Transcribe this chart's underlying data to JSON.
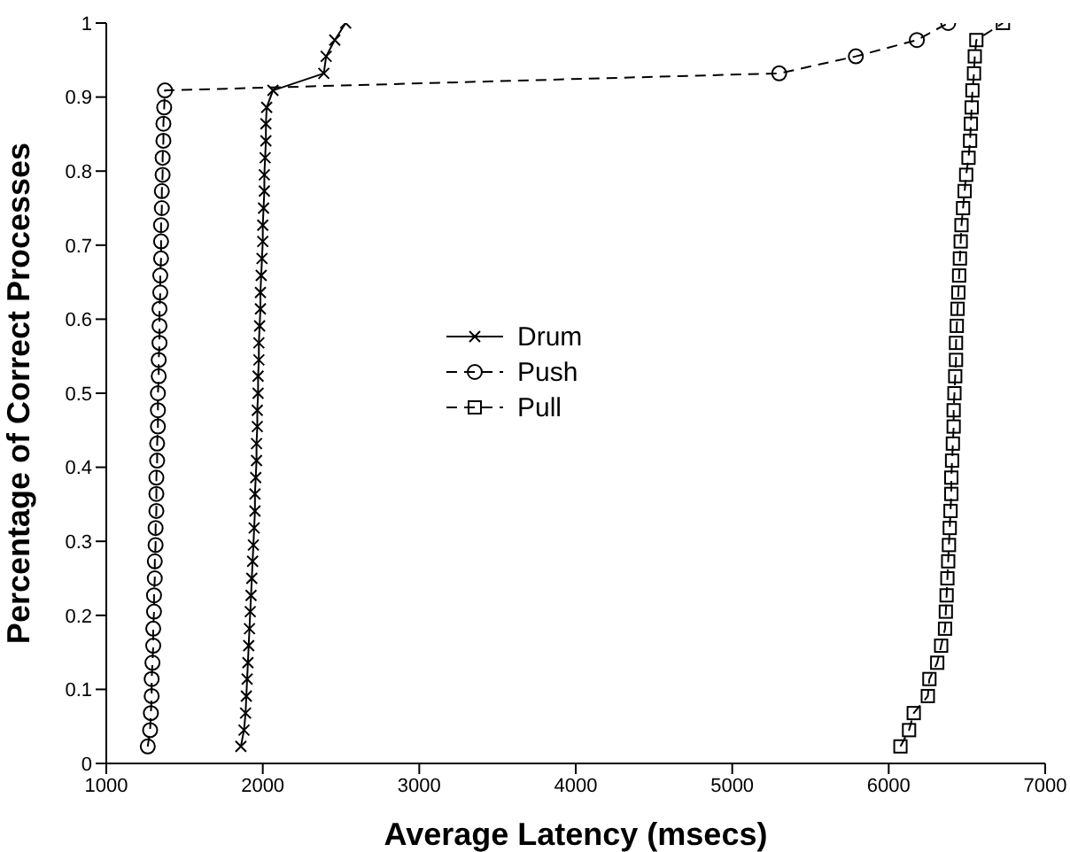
{
  "chart_data": {
    "type": "line",
    "xlabel": "Average Latency (msecs)",
    "ylabel": "Percentage of Correct Processes",
    "xlim": [
      1000,
      7000
    ],
    "xticks": [
      1000,
      2000,
      3000,
      4000,
      5000,
      6000,
      7000
    ],
    "ylim": [
      0,
      1
    ],
    "yticks": [
      0,
      0.1,
      0.2,
      0.3,
      0.4,
      0.5,
      0.6,
      0.7,
      0.8,
      0.9,
      1
    ],
    "grid": false,
    "legend": "center",
    "series": [
      {
        "name": "Drum",
        "color": "#000000",
        "marker": "cross",
        "line_style": "solid",
        "x": [
          1860,
          1880,
          1890,
          1895,
          1900,
          1905,
          1910,
          1915,
          1920,
          1925,
          1930,
          1935,
          1940,
          1945,
          1950,
          1950,
          1955,
          1960,
          1960,
          1965,
          1965,
          1970,
          1970,
          1975,
          1975,
          1980,
          1985,
          1985,
          1990,
          1995,
          2000,
          2000,
          2005,
          2010,
          2010,
          2015,
          2020,
          2020,
          2025,
          2065,
          2390,
          2405,
          2460,
          2530
        ],
        "values": [
          0.023,
          0.045,
          0.068,
          0.091,
          0.114,
          0.136,
          0.159,
          0.182,
          0.205,
          0.227,
          0.25,
          0.273,
          0.295,
          0.318,
          0.341,
          0.364,
          0.386,
          0.409,
          0.432,
          0.455,
          0.477,
          0.5,
          0.523,
          0.545,
          0.568,
          0.591,
          0.614,
          0.636,
          0.659,
          0.682,
          0.705,
          0.727,
          0.75,
          0.773,
          0.795,
          0.818,
          0.841,
          0.864,
          0.886,
          0.909,
          0.932,
          0.955,
          0.977,
          1
        ]
      },
      {
        "name": "Push",
        "color": "#000000",
        "marker": "circle",
        "line_style": "dashed",
        "x": [
          1265,
          1280,
          1285,
          1290,
          1290,
          1295,
          1300,
          1300,
          1305,
          1305,
          1310,
          1310,
          1315,
          1315,
          1320,
          1320,
          1320,
          1325,
          1325,
          1330,
          1330,
          1330,
          1335,
          1335,
          1340,
          1340,
          1340,
          1345,
          1345,
          1350,
          1350,
          1350,
          1355,
          1355,
          1360,
          1360,
          1365,
          1365,
          1370,
          1375,
          5300,
          5790,
          6180,
          6380
        ],
        "values": [
          0.023,
          0.045,
          0.068,
          0.091,
          0.114,
          0.136,
          0.159,
          0.182,
          0.205,
          0.227,
          0.25,
          0.273,
          0.295,
          0.318,
          0.341,
          0.364,
          0.386,
          0.409,
          0.432,
          0.455,
          0.477,
          0.5,
          0.523,
          0.545,
          0.568,
          0.591,
          0.614,
          0.636,
          0.659,
          0.682,
          0.705,
          0.727,
          0.75,
          0.773,
          0.795,
          0.818,
          0.841,
          0.864,
          0.886,
          0.909,
          0.932,
          0.955,
          0.977,
          1
        ]
      },
      {
        "name": "Pull",
        "color": "#000000",
        "marker": "square",
        "line_style": "dashed",
        "x": [
          6075,
          6130,
          6160,
          6250,
          6260,
          6310,
          6335,
          6360,
          6365,
          6370,
          6375,
          6380,
          6385,
          6390,
          6395,
          6400,
          6400,
          6405,
          6410,
          6415,
          6415,
          6420,
          6425,
          6430,
          6430,
          6435,
          6440,
          6445,
          6450,
          6455,
          6460,
          6465,
          6475,
          6485,
          6495,
          6510,
          6520,
          6525,
          6530,
          6535,
          6545,
          6550,
          6560,
          6730
        ],
        "values": [
          0.023,
          0.045,
          0.068,
          0.091,
          0.114,
          0.136,
          0.159,
          0.182,
          0.205,
          0.227,
          0.25,
          0.273,
          0.295,
          0.318,
          0.341,
          0.364,
          0.386,
          0.409,
          0.432,
          0.455,
          0.477,
          0.5,
          0.523,
          0.545,
          0.568,
          0.591,
          0.614,
          0.636,
          0.659,
          0.682,
          0.705,
          0.727,
          0.75,
          0.773,
          0.795,
          0.818,
          0.841,
          0.864,
          0.886,
          0.909,
          0.932,
          0.955,
          0.977,
          1
        ]
      }
    ]
  }
}
